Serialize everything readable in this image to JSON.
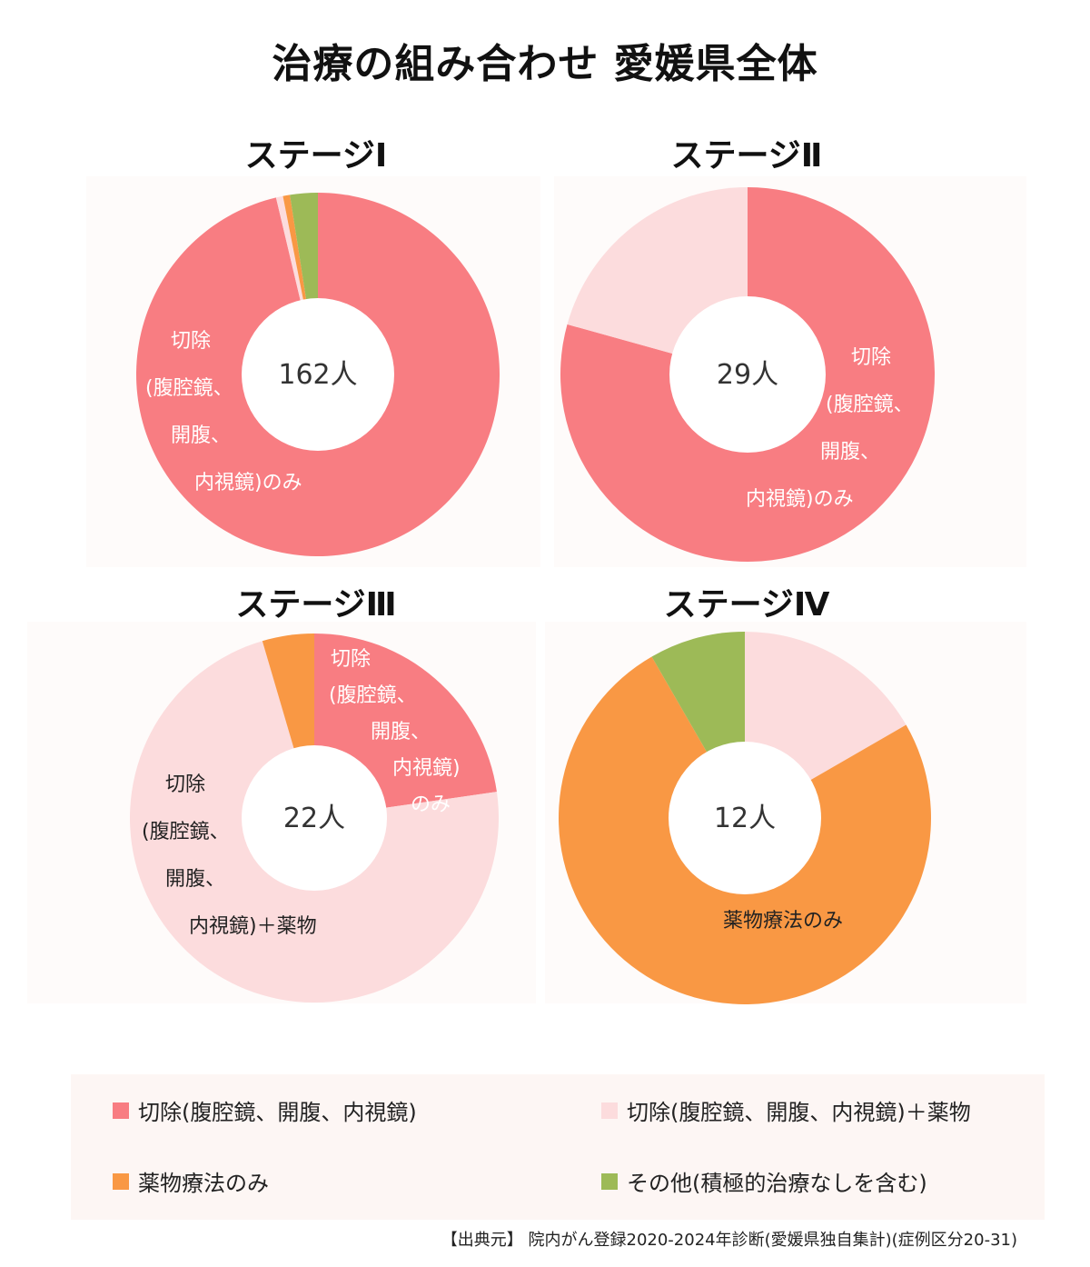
{
  "title": "治療の組み合わせ 愛媛県全体",
  "colors": {
    "resection_only": "#f87d82",
    "resection_plus_drug": "#fcdcdd",
    "drug_only": "#f99844",
    "other": "#9dba57"
  },
  "chart_data": [
    {
      "type": "pie",
      "title": "ステージⅠ",
      "center_label": "162人",
      "total": 162,
      "slices": [
        {
          "category": "resection_only",
          "value": 156,
          "label_lines": [
            "切除",
            "(腹腔鏡、",
            "開腹、",
            "内視鏡)のみ"
          ]
        },
        {
          "category": "resection_plus_drug",
          "value": 1,
          "label_lines": []
        },
        {
          "category": "drug_only",
          "value": 1,
          "label_lines": []
        },
        {
          "category": "other",
          "value": 4,
          "label_lines": []
        }
      ]
    },
    {
      "type": "pie",
      "title": "ステージⅡ",
      "center_label": "29人",
      "total": 29,
      "slices": [
        {
          "category": "resection_only",
          "value": 23,
          "label_lines": [
            "切除",
            "(腹腔鏡、",
            "開腹、",
            "内視鏡)のみ"
          ]
        },
        {
          "category": "resection_plus_drug",
          "value": 6,
          "label_lines": []
        }
      ]
    },
    {
      "type": "pie",
      "title": "ステージⅢ",
      "center_label": "22人",
      "total": 22,
      "slices": [
        {
          "category": "resection_only",
          "value": 5,
          "label_lines": [
            "切除",
            "(腹腔鏡、",
            "開腹、",
            "内視鏡)",
            "のみ"
          ]
        },
        {
          "category": "resection_plus_drug",
          "value": 16,
          "label_lines": [
            "切除",
            "(腹腔鏡、",
            "開腹、",
            "内視鏡)＋薬物"
          ]
        },
        {
          "category": "drug_only",
          "value": 1,
          "label_lines": []
        }
      ]
    },
    {
      "type": "pie",
      "title": "ステージⅣ",
      "center_label": "12人",
      "total": 12,
      "slices": [
        {
          "category": "resection_plus_drug",
          "value": 2,
          "label_lines": []
        },
        {
          "category": "drug_only",
          "value": 9,
          "label_lines": [
            "薬物療法のみ"
          ]
        },
        {
          "category": "other",
          "value": 1,
          "label_lines": []
        }
      ]
    }
  ],
  "legend": [
    {
      "category": "resection_only",
      "label": "切除(腹腔鏡、開腹、内視鏡)"
    },
    {
      "category": "resection_plus_drug",
      "label": "切除(腹腔鏡、開腹、内視鏡)＋薬物"
    },
    {
      "category": "drug_only",
      "label": "薬物療法のみ"
    },
    {
      "category": "other",
      "label": "その他(積極的治療なしを含む)"
    }
  ],
  "source": "【出典元】 院内がん登録2020-2024年診断(愛媛県独自集計)(症例区分20-31)"
}
